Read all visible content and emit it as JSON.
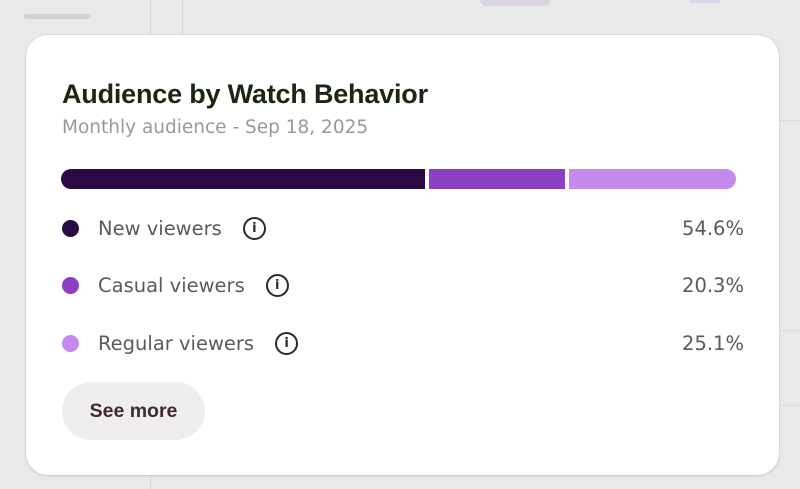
{
  "card": {
    "title": "Audience by Watch Behavior",
    "subtitle": "Monthly audience - Sep 18, 2025",
    "see_more_label": "See more"
  },
  "chart_data": {
    "type": "bar",
    "stacked": true,
    "orientation": "horizontal",
    "categories": [
      "New viewers",
      "Casual viewers",
      "Regular viewers"
    ],
    "values": [
      54.6,
      20.3,
      25.1
    ],
    "value_labels": [
      "54.6%",
      "20.3%",
      "25.1%"
    ],
    "colors": [
      "#2a0a45",
      "#8c3fc0",
      "#c48bec"
    ],
    "legend": "below"
  },
  "icons": {
    "info": "info-circle-icon"
  }
}
